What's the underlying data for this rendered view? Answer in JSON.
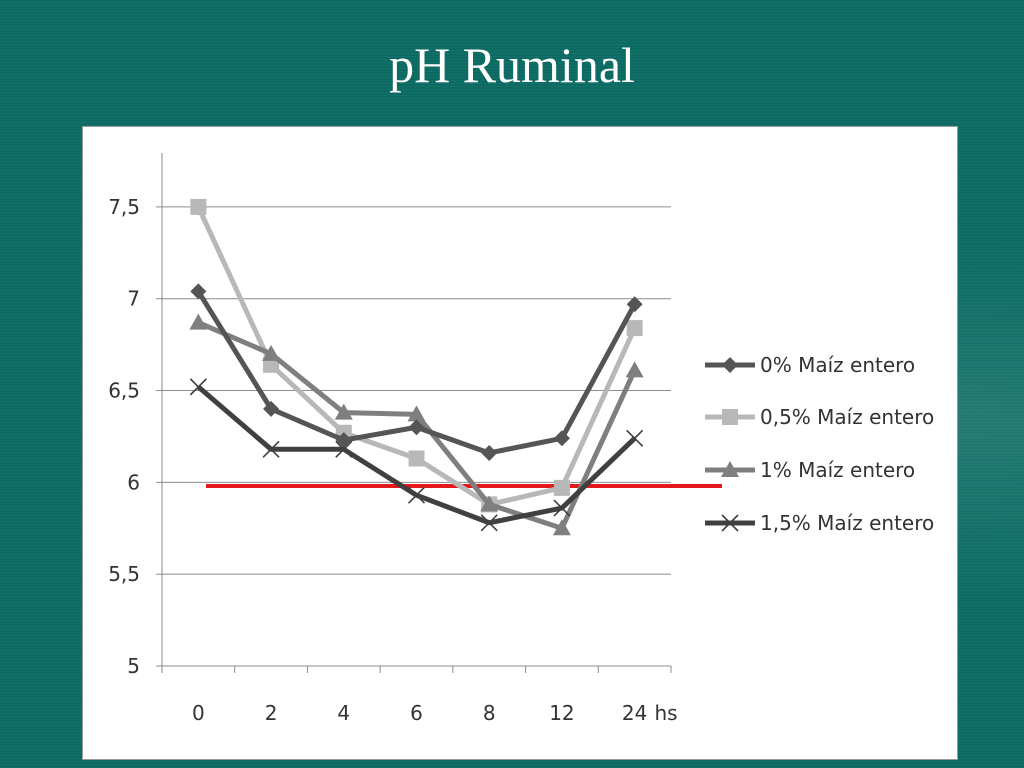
{
  "slide": {
    "title": "pH Ruminal"
  },
  "chart_data": {
    "type": "line",
    "categories": [
      "0",
      "2",
      "4",
      "6",
      "8",
      "12",
      "24"
    ],
    "x_unit_label": "hs",
    "y_ticks": [
      "5",
      "5,5",
      "6",
      "6,5",
      "7",
      "7,5"
    ],
    "ylim": [
      5,
      7.75
    ],
    "grid": true,
    "legend_position": "right",
    "series": [
      {
        "name": "0% Maíz entero",
        "color": "#555555",
        "marker": "diamond",
        "values": [
          7.04,
          6.4,
          6.23,
          6.3,
          6.16,
          6.24,
          6.97
        ]
      },
      {
        "name": "0,5% Maíz entero",
        "color": "#b8b8b8",
        "marker": "square",
        "values": [
          7.5,
          6.64,
          6.27,
          6.13,
          5.88,
          5.97,
          6.84
        ]
      },
      {
        "name": "1% Maíz entero",
        "color": "#7f7f7f",
        "marker": "triangle",
        "values": [
          6.87,
          6.7,
          6.38,
          6.37,
          5.88,
          5.75,
          6.61
        ]
      },
      {
        "name": "1,5% Maíz entero",
        "color": "#404040",
        "marker": "x",
        "values": [
          6.52,
          6.18,
          6.18,
          5.93,
          5.78,
          5.86,
          6.24
        ]
      }
    ],
    "reference_line": {
      "y": 5.98,
      "color": "#e3191b"
    }
  }
}
